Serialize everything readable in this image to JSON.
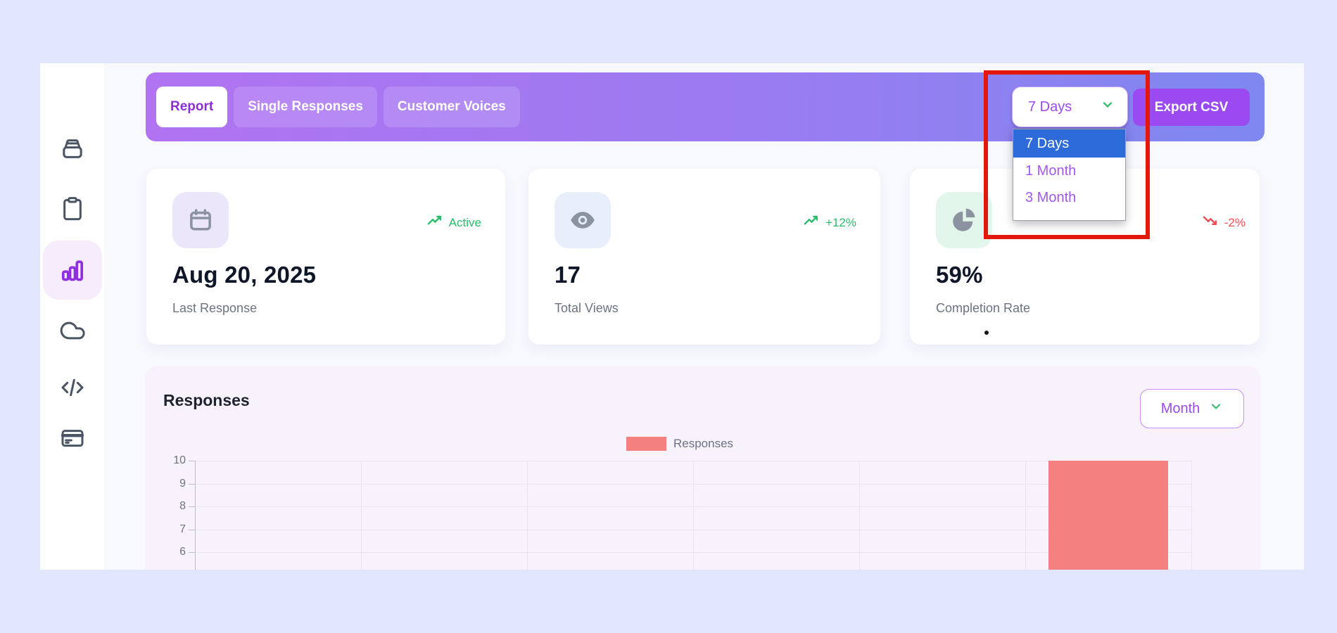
{
  "colors": {
    "page_bg": "#e2e6fc",
    "header_gradient_left": "#b173f2",
    "header_gradient_right": "#7e88f0",
    "accent_purple": "#9b4af2",
    "green": "#26bd6a",
    "red": "#ef4b52",
    "bar_color": "#f58080",
    "annotation_red": "#e3180c",
    "selected_option_bg": "#2c6bd9"
  },
  "sidebar": {
    "items": [
      {
        "icon": "archive-icon",
        "active": false
      },
      {
        "icon": "clipboard-icon",
        "active": false
      },
      {
        "icon": "bar-chart-icon",
        "active": true
      },
      {
        "icon": "cloud-icon",
        "active": false
      },
      {
        "icon": "code-icon",
        "active": false
      },
      {
        "icon": "credit-card-icon",
        "active": false
      }
    ]
  },
  "header": {
    "tabs": [
      {
        "label": "Report",
        "active": true
      },
      {
        "label": "Single Responses",
        "active": false
      },
      {
        "label": "Customer Voices",
        "active": false
      }
    ],
    "period_select": {
      "value": "7 Days",
      "options": [
        "7 Days",
        "1 Month",
        "3 Month"
      ],
      "selected": "7 Days"
    },
    "export_button": "Export CSV"
  },
  "stats": [
    {
      "icon": "calendar-icon",
      "trend": "Active",
      "trend_direction": "up",
      "value": "Aug 20, 2025",
      "label": "Last Response"
    },
    {
      "icon": "eye-icon",
      "trend": "+12%",
      "trend_direction": "up",
      "value": "17",
      "label": "Total Views"
    },
    {
      "icon": "pie-chart-icon",
      "trend": "-2%",
      "trend_direction": "down",
      "value": "59%",
      "label": "Completion Rate"
    }
  ],
  "responses": {
    "title": "Responses",
    "range_select": {
      "value": "Month"
    },
    "legend_label": "Responses"
  },
  "chart_data": {
    "type": "bar",
    "title": "Responses",
    "legend": [
      "Responses"
    ],
    "legend_position": "top-center",
    "categories": [
      "",
      "",
      "",
      "",
      "",
      ""
    ],
    "series": [
      {
        "name": "Responses",
        "color": "#f58080",
        "values": [
          0,
          0,
          0,
          0,
          0,
          10
        ]
      }
    ],
    "yticks": [
      10,
      9,
      8,
      7,
      6
    ],
    "ylim_visible": [
      5.3,
      10
    ],
    "grid": true,
    "xlabel": "",
    "ylabel": ""
  }
}
